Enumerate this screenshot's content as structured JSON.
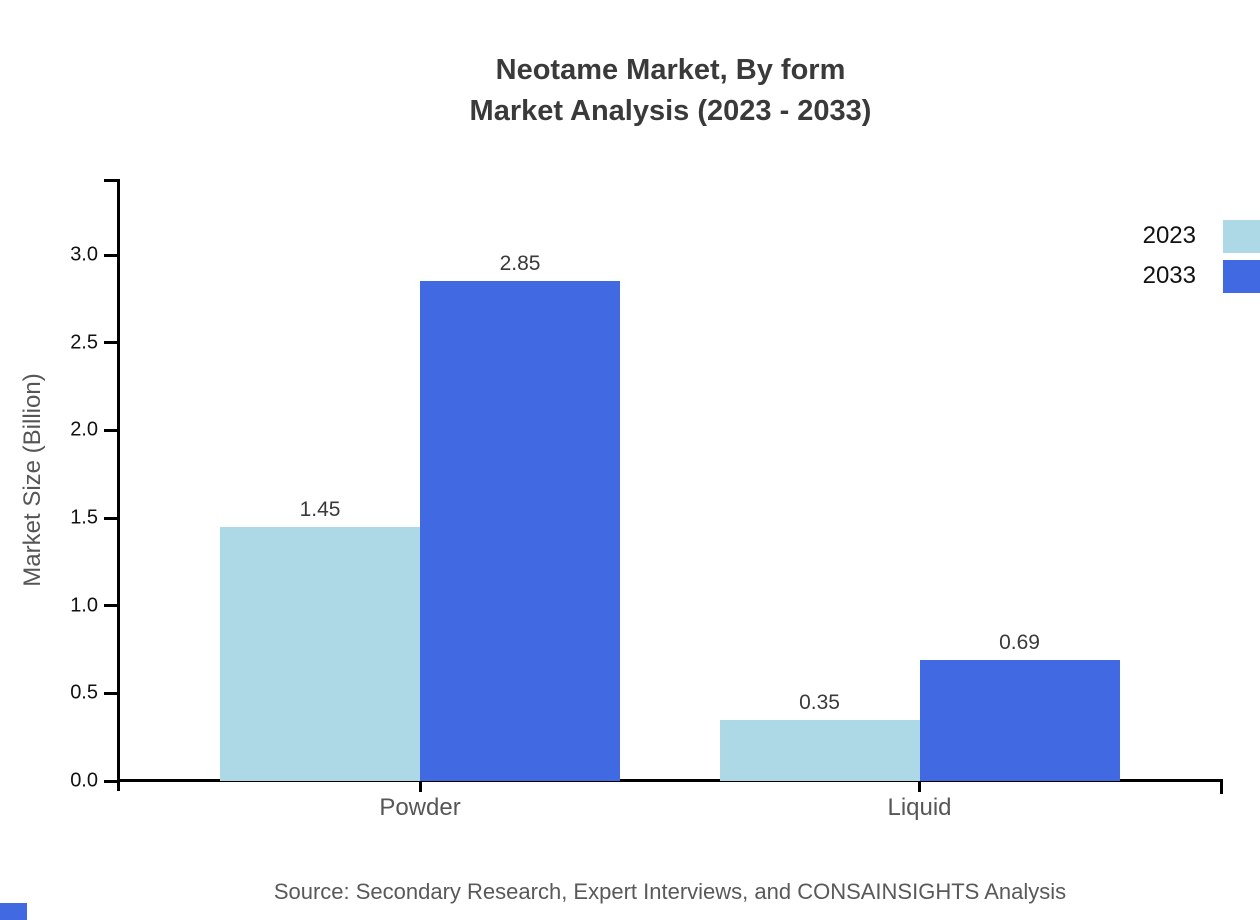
{
  "title": {
    "line1": "Neotame Market, By form",
    "line2": "Market Analysis (2023 - 2033)"
  },
  "chart_data": {
    "type": "bar",
    "categories": [
      "Powder",
      "Liquid"
    ],
    "series": [
      {
        "name": "2023",
        "color": "#ADD8E6",
        "values": [
          1.45,
          0.35
        ]
      },
      {
        "name": "2033",
        "color": "#4169E1",
        "values": [
          2.85,
          0.69
        ]
      }
    ],
    "value_labels": [
      [
        "1.45",
        "0.35"
      ],
      [
        "2.85",
        "0.69"
      ]
    ],
    "title": "Neotame Market, By form Market Analysis (2023 - 2033)",
    "xlabel": "",
    "ylabel": "Market Size (Billion)",
    "ylim": [
      0.0,
      3.43
    ],
    "y_ticks": [
      "0.0",
      "0.5",
      "1.0",
      "1.5",
      "2.0",
      "2.5",
      "3.0"
    ],
    "grid": false,
    "legend_position": "top-right"
  },
  "source": "Source: Secondary Research, Expert Interviews, and CONSAINSIGHTS Analysis",
  "colors": {
    "series_2023": "#ADD8E6",
    "series_2033": "#4169E1",
    "axis": "#000000",
    "title_text": "#3A3A3A",
    "muted_text": "#565656",
    "corner_mark": "#4169E1"
  }
}
